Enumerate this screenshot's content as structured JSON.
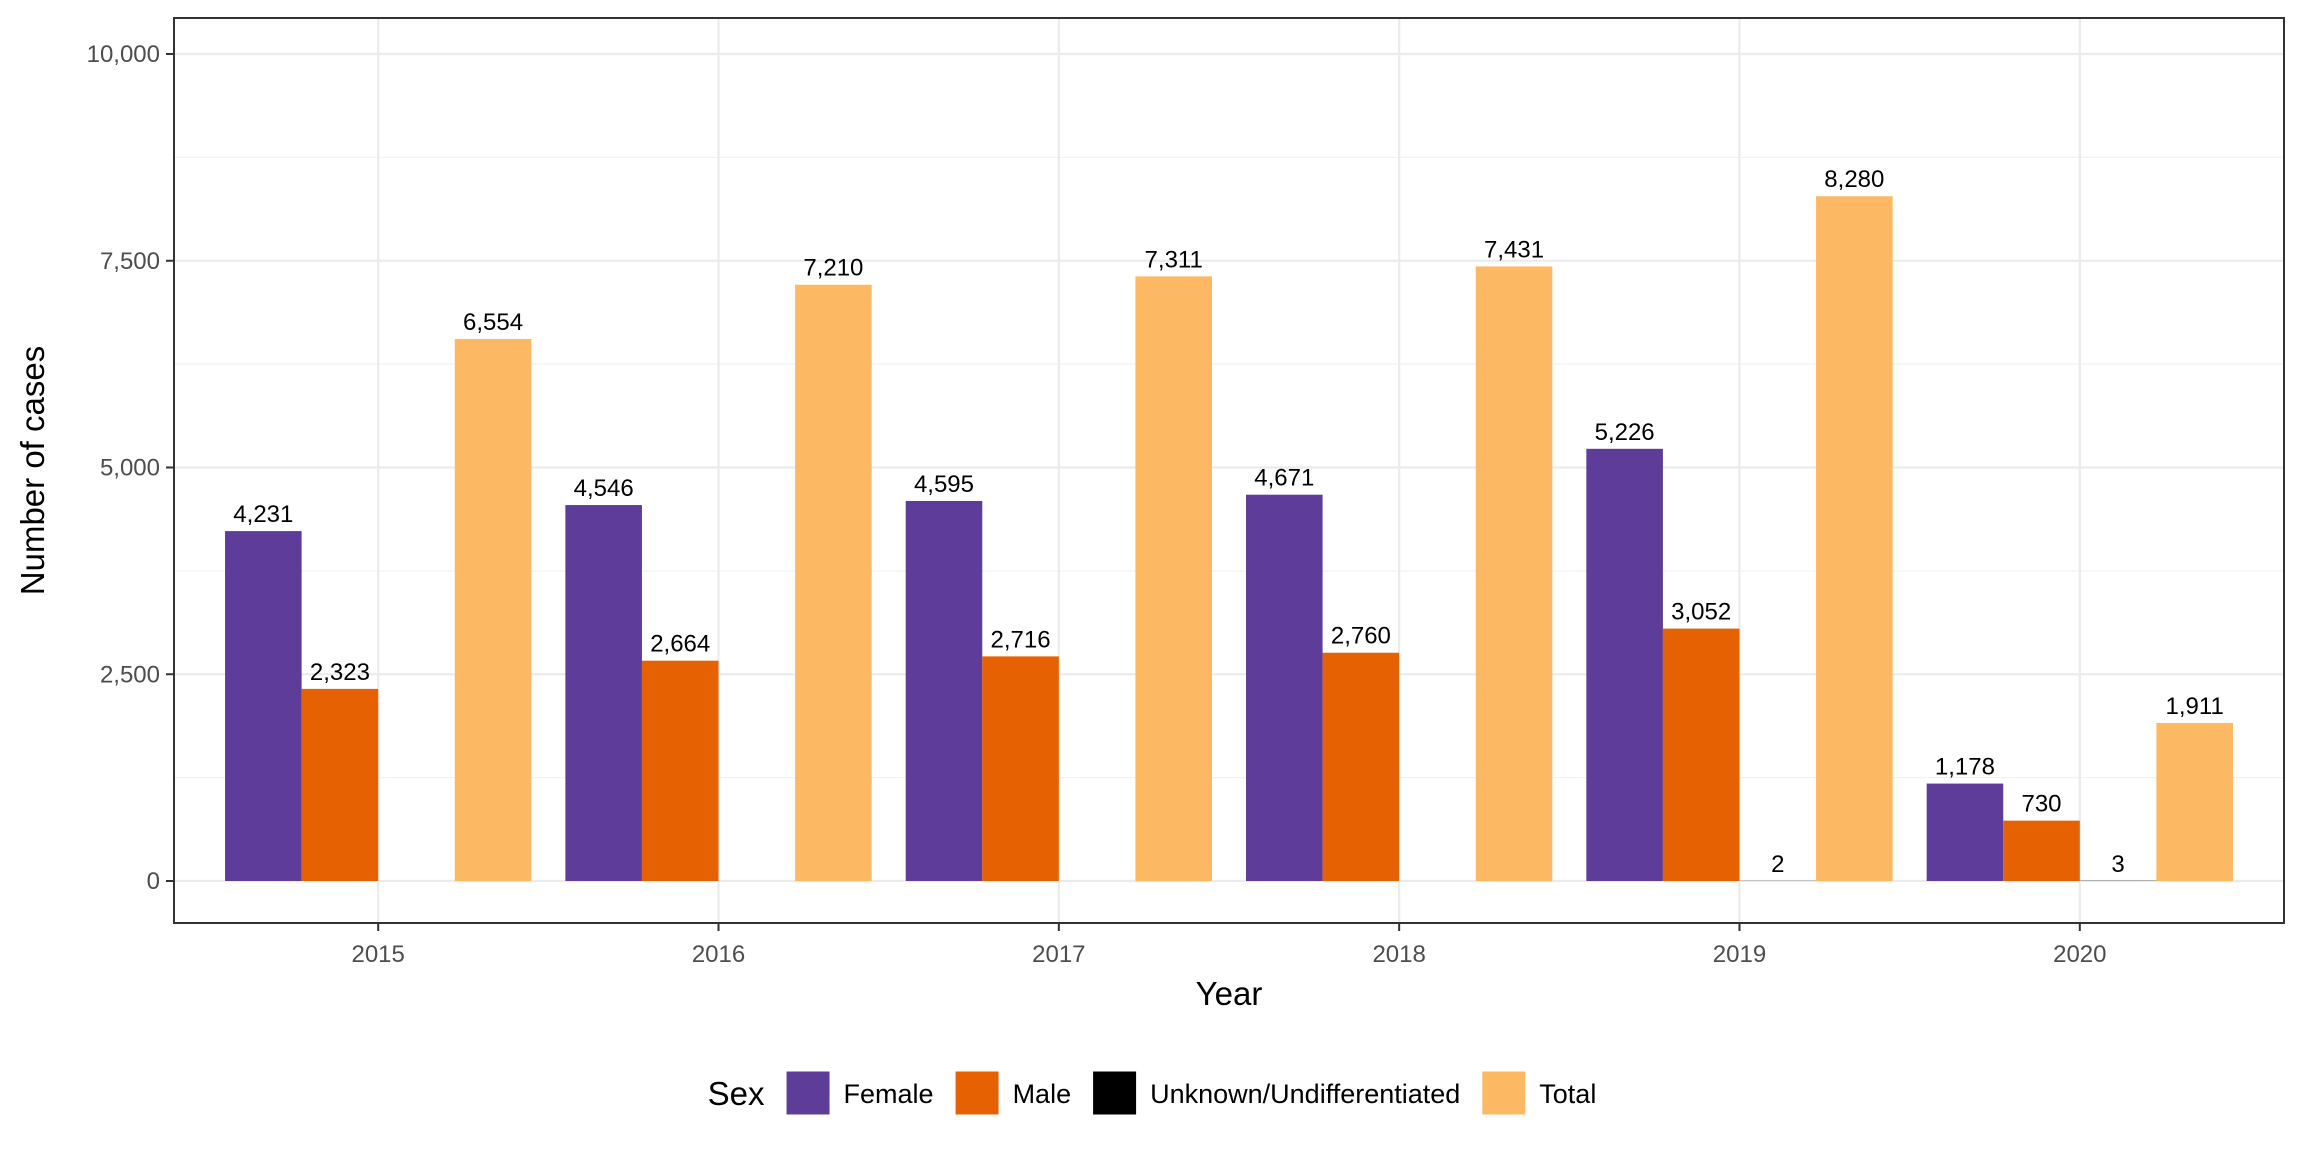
{
  "chart_data": {
    "type": "bar",
    "title": "",
    "xlabel": "Year",
    "ylabel": "Number of cases",
    "categories": [
      "2015",
      "2016",
      "2017",
      "2018",
      "2019",
      "2020"
    ],
    "series": [
      {
        "name": "Female",
        "color": "#5e3c99",
        "values": [
          4231,
          4546,
          4595,
          4671,
          5226,
          1178
        ],
        "labels": [
          "4,231",
          "4,546",
          "4,595",
          "4,671",
          "5,226",
          "1,178"
        ]
      },
      {
        "name": "Male",
        "color": "#e66101",
        "values": [
          2323,
          2664,
          2716,
          2760,
          3052,
          730
        ],
        "labels": [
          "2,323",
          "2,664",
          "2,716",
          "2,760",
          "3,052",
          "730"
        ]
      },
      {
        "name": "Unknown/Undifferentiated",
        "color": "#000000",
        "values": [
          null,
          null,
          null,
          null,
          2,
          3
        ],
        "labels": [
          null,
          null,
          null,
          null,
          "2",
          "3"
        ]
      },
      {
        "name": "Total",
        "color": "#fdb863",
        "values": [
          6554,
          7210,
          7311,
          7431,
          8280,
          1911
        ],
        "labels": [
          "6,554",
          "7,210",
          "7,311",
          "7,431",
          "8,280",
          "1,911"
        ]
      }
    ],
    "ylim": [
      0,
      10000
    ],
    "yticks": [
      0,
      2500,
      5000,
      7500,
      10000
    ],
    "ytick_labels": [
      "0",
      "2,500",
      "5,000",
      "7,500",
      "10,000"
    ],
    "grid": true,
    "legend": {
      "title": "Sex",
      "position": "bottom"
    }
  }
}
